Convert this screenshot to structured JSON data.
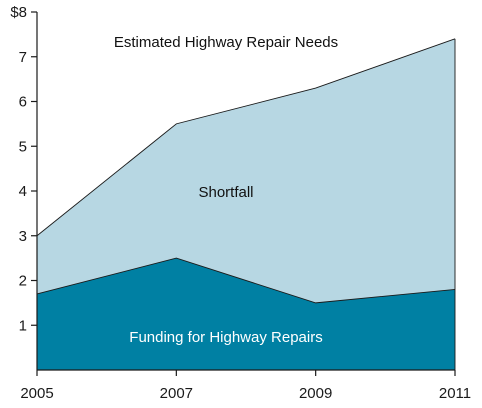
{
  "chart_data": {
    "type": "area",
    "title": "",
    "xlabel": "",
    "ylabel": "",
    "x": [
      2005,
      2007,
      2009,
      2011
    ],
    "x_tick_labels": [
      "2005",
      "2007",
      "2009",
      "2011"
    ],
    "ylim": [
      0,
      8
    ],
    "y_tick_labels": [
      "1",
      "2",
      "3",
      "4",
      "5",
      "6",
      "7",
      "$8"
    ],
    "series": [
      {
        "name": "Estimated Highway Repair Needs",
        "values": [
          3.0,
          5.5,
          6.3,
          7.4
        ]
      },
      {
        "name": "Funding for Highway Repairs",
        "values": [
          1.7,
          2.5,
          1.5,
          1.8
        ]
      }
    ],
    "annotations": {
      "needs": "Estimated Highway Repair Needs",
      "shortfall": "Shortfall",
      "funding": "Funding for Highway Repairs"
    },
    "grid": false,
    "legend": "none"
  },
  "colors": {
    "shortfall_fill": "#b7d7e3",
    "funding_fill": "#0080a3",
    "line": "#1a1a1a",
    "axis": "#1a1a1a",
    "needs_text": "#111111",
    "shortfall_text": "#111111",
    "funding_text": "#ffffff"
  }
}
